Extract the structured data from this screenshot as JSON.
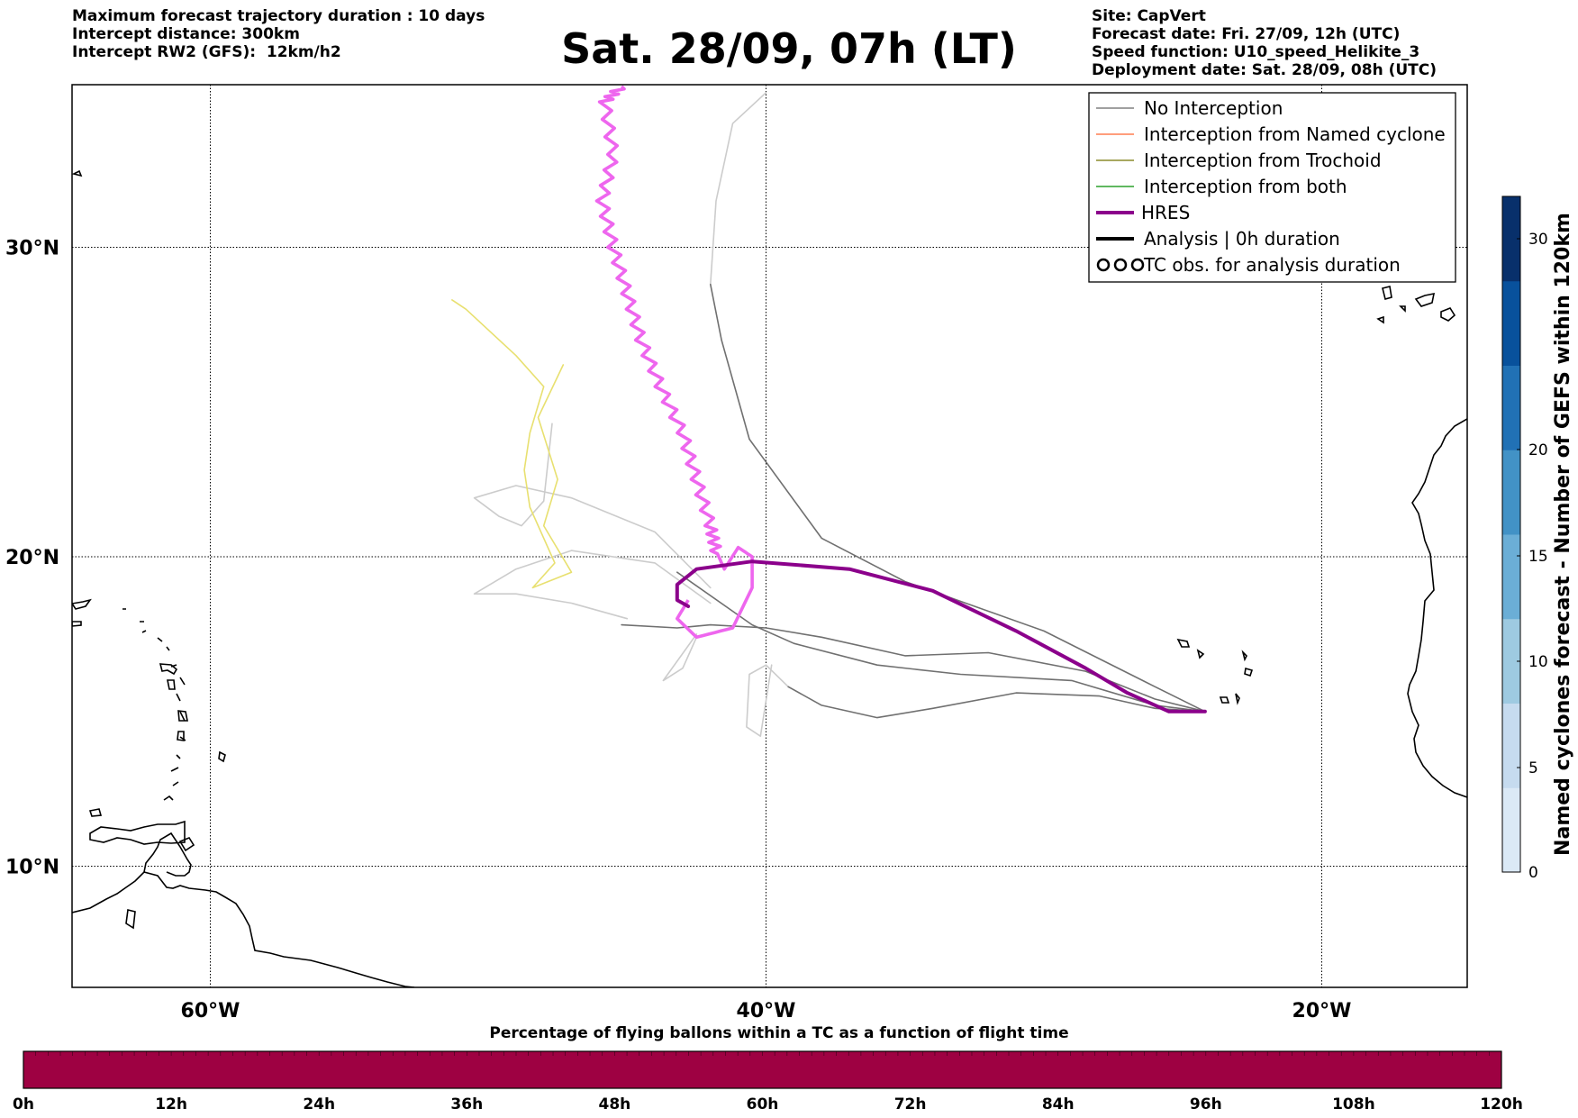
{
  "header": {
    "left_lines": [
      "Maximum forecast trajectory duration : 10 days",
      "Intercept distance: 300km",
      "Intercept RW2 (GFS):  12km/h2"
    ],
    "title": "Sat. 28/09, 07h (LT)",
    "right_lines": [
      "Site: CapVert",
      "Forecast date: Fri. 27/09, 12h (UTC)",
      "Speed function: U10_speed_Helikite_3",
      "Deployment date: Sat. 28/09, 08h (UTC)"
    ]
  },
  "map": {
    "lat_ticks": [
      {
        "value": 30,
        "label": "30°N"
      },
      {
        "value": 20,
        "label": "20°N"
      },
      {
        "value": 10,
        "label": "10°N"
      }
    ],
    "lon_ticks": [
      {
        "value": -60,
        "label": "60°W"
      },
      {
        "value": -40,
        "label": "40°W"
      },
      {
        "value": -20,
        "label": "20°W"
      }
    ],
    "grid": true,
    "grid_style": "dotted"
  },
  "legend": {
    "placement": "top-right",
    "items": [
      {
        "label": "No Interception",
        "color": "#808080",
        "style": "thin-line"
      },
      {
        "label": "Interception from Named cyclone",
        "color": "#ff7f50",
        "style": "thin-line"
      },
      {
        "label": "Interception from Trochoid",
        "color": "#8b8b2c",
        "style": "thin-line"
      },
      {
        "label": "Interception from both",
        "color": "#2ca02c",
        "style": "thin-line"
      },
      {
        "label": "HRES",
        "color": "#8b008b",
        "style": "thick-line"
      },
      {
        "label": "Analysis | 0h duration",
        "color": "#000000",
        "style": "thick-line"
      },
      {
        "label": "TC obs. for analysis duration",
        "color": "#000000",
        "style": "cyclone-symbols"
      }
    ]
  },
  "colorbar_right": {
    "label": "Named cyclones forecast - Number of GEFS within 120km",
    "ticks": [
      "0",
      "5",
      "10",
      "15",
      "20",
      "30"
    ],
    "colors": [
      "#dbe9f6",
      "#c6dbef",
      "#9ecae1",
      "#6baed6",
      "#4292c6",
      "#2171b5",
      "#08519c",
      "#08306b"
    ]
  },
  "colorbar_bottom": {
    "title": "Percentage of flying ballons within a TC as a function of flight time",
    "ticks": [
      "0h",
      "12h",
      "24h",
      "36h",
      "48h",
      "60h",
      "72h",
      "84h",
      "96h",
      "108h",
      "120h"
    ],
    "fill_color": "#9e0142"
  },
  "trajectories": {
    "launch_site": {
      "lon": -24.2,
      "lat": 15.0
    },
    "hres": {
      "color": "#8b008b",
      "points": [
        [
          -24.2,
          15.0
        ],
        [
          -25.5,
          15.0
        ],
        [
          -27.0,
          15.6
        ],
        [
          -28.5,
          16.4
        ],
        [
          -31,
          17.6
        ],
        [
          -34,
          18.9
        ],
        [
          -37,
          19.6
        ],
        [
          -40.5,
          19.85
        ],
        [
          -42.5,
          19.6
        ],
        [
          -43.2,
          19.1
        ],
        [
          -43.2,
          18.6
        ],
        [
          -42.8,
          18.4
        ]
      ]
    },
    "magenta": {
      "color": "#ee66ee",
      "points": [
        [
          -45.2,
          35.2
        ],
        [
          -45.8,
          34.7
        ],
        [
          -45.5,
          33.0
        ],
        [
          -45.9,
          31.5
        ],
        [
          -45.5,
          30.0
        ],
        [
          -45.0,
          28.5
        ],
        [
          -44.5,
          27.0
        ],
        [
          -43.8,
          25.5
        ],
        [
          -43.0,
          24.0
        ],
        [
          -42.5,
          22.5
        ],
        [
          -42.0,
          21.0
        ],
        [
          -41.8,
          20.2
        ],
        [
          -41.5,
          19.6
        ],
        [
          -41.0,
          20.3
        ],
        [
          -40.5,
          20.0
        ],
        [
          -40.5,
          19.0
        ],
        [
          -41.2,
          17.7
        ],
        [
          -42.5,
          17.4
        ],
        [
          -43.2,
          18.0
        ],
        [
          -42.8,
          18.6
        ]
      ]
    },
    "no_interception_dark": [
      {
        "points": [
          [
            -24.2,
            15.0
          ],
          [
            -26,
            15.8
          ],
          [
            -30,
            17.6
          ],
          [
            -35,
            19.2
          ],
          [
            -38,
            20.6
          ],
          [
            -40.6,
            23.8
          ],
          [
            -41.6,
            27.0
          ],
          [
            -42.0,
            28.8
          ]
        ]
      },
      {
        "points": [
          [
            -24.2,
            15.0
          ],
          [
            -26,
            15.4
          ],
          [
            -28.5,
            16.3
          ],
          [
            -32,
            16.9
          ],
          [
            -35,
            16.8
          ],
          [
            -38,
            17.4
          ],
          [
            -40,
            17.7
          ],
          [
            -42,
            17.8
          ],
          [
            -43.2,
            17.7
          ],
          [
            -45.2,
            17.8
          ]
        ]
      },
      {
        "points": [
          [
            -24.2,
            15.0
          ],
          [
            -26,
            15.2
          ],
          [
            -29,
            16.0
          ],
          [
            -33,
            16.2
          ],
          [
            -36,
            16.5
          ],
          [
            -39,
            17.2
          ],
          [
            -40.5,
            17.8
          ],
          [
            -43.2,
            19.5
          ]
        ]
      },
      {
        "points": [
          [
            -24.2,
            15.0
          ],
          [
            -26,
            15.1
          ],
          [
            -28,
            15.5
          ],
          [
            -31,
            15.6
          ],
          [
            -34,
            15.1
          ],
          [
            -36,
            14.8
          ],
          [
            -38,
            15.2
          ],
          [
            -39.2,
            15.8
          ]
        ]
      }
    ],
    "no_interception_light": [
      {
        "points": [
          [
            -42.0,
            28.8
          ],
          [
            -41.8,
            31.5
          ],
          [
            -41.2,
            34.0
          ],
          [
            -40.0,
            35.0
          ]
        ]
      },
      {
        "points": [
          [
            -39.2,
            15.8
          ],
          [
            -40.0,
            16.5
          ],
          [
            -40.6,
            16.2
          ],
          [
            -40.7,
            14.5
          ],
          [
            -40.2,
            14.2
          ],
          [
            -39.8,
            16.5
          ]
        ]
      },
      {
        "points": [
          [
            -42.0,
            18.5
          ],
          [
            -44,
            19.8
          ],
          [
            -47,
            20.2
          ],
          [
            -49,
            19.6
          ],
          [
            -50.5,
            18.8
          ],
          [
            -49.0,
            18.8
          ],
          [
            -47.0,
            18.5
          ],
          [
            -45,
            18.0
          ]
        ]
      },
      {
        "points": [
          [
            -42.5,
            17.5
          ],
          [
            -43.7,
            16.0
          ],
          [
            -43.0,
            16.4
          ],
          [
            -42.5,
            17.4
          ]
        ]
      },
      {
        "points": [
          [
            -42,
            19.0
          ],
          [
            -44,
            20.8
          ],
          [
            -47,
            21.9
          ],
          [
            -49,
            22.3
          ],
          [
            -50.5,
            21.9
          ],
          [
            -49.6,
            21.3
          ],
          [
            -48.8,
            21.0
          ],
          [
            -48.0,
            21.8
          ],
          [
            -47.7,
            24.3
          ]
        ]
      }
    ],
    "yellow": {
      "color": "#e8e070",
      "points": [
        [
          -51.3,
          28.3
        ],
        [
          -50.8,
          28.0
        ],
        [
          -49.0,
          26.5
        ],
        [
          -48.0,
          25.5
        ],
        [
          -48.5,
          24.0
        ],
        [
          -48.7,
          22.8
        ],
        [
          -48.5,
          21.6
        ],
        [
          -47.6,
          19.8
        ],
        [
          -48.4,
          19.0
        ],
        [
          -47.0,
          19.5
        ],
        [
          -48.0,
          21.0
        ],
        [
          -47.5,
          22.5
        ],
        [
          -48.2,
          24.5
        ],
        [
          -47.3,
          26.2
        ]
      ]
    }
  }
}
